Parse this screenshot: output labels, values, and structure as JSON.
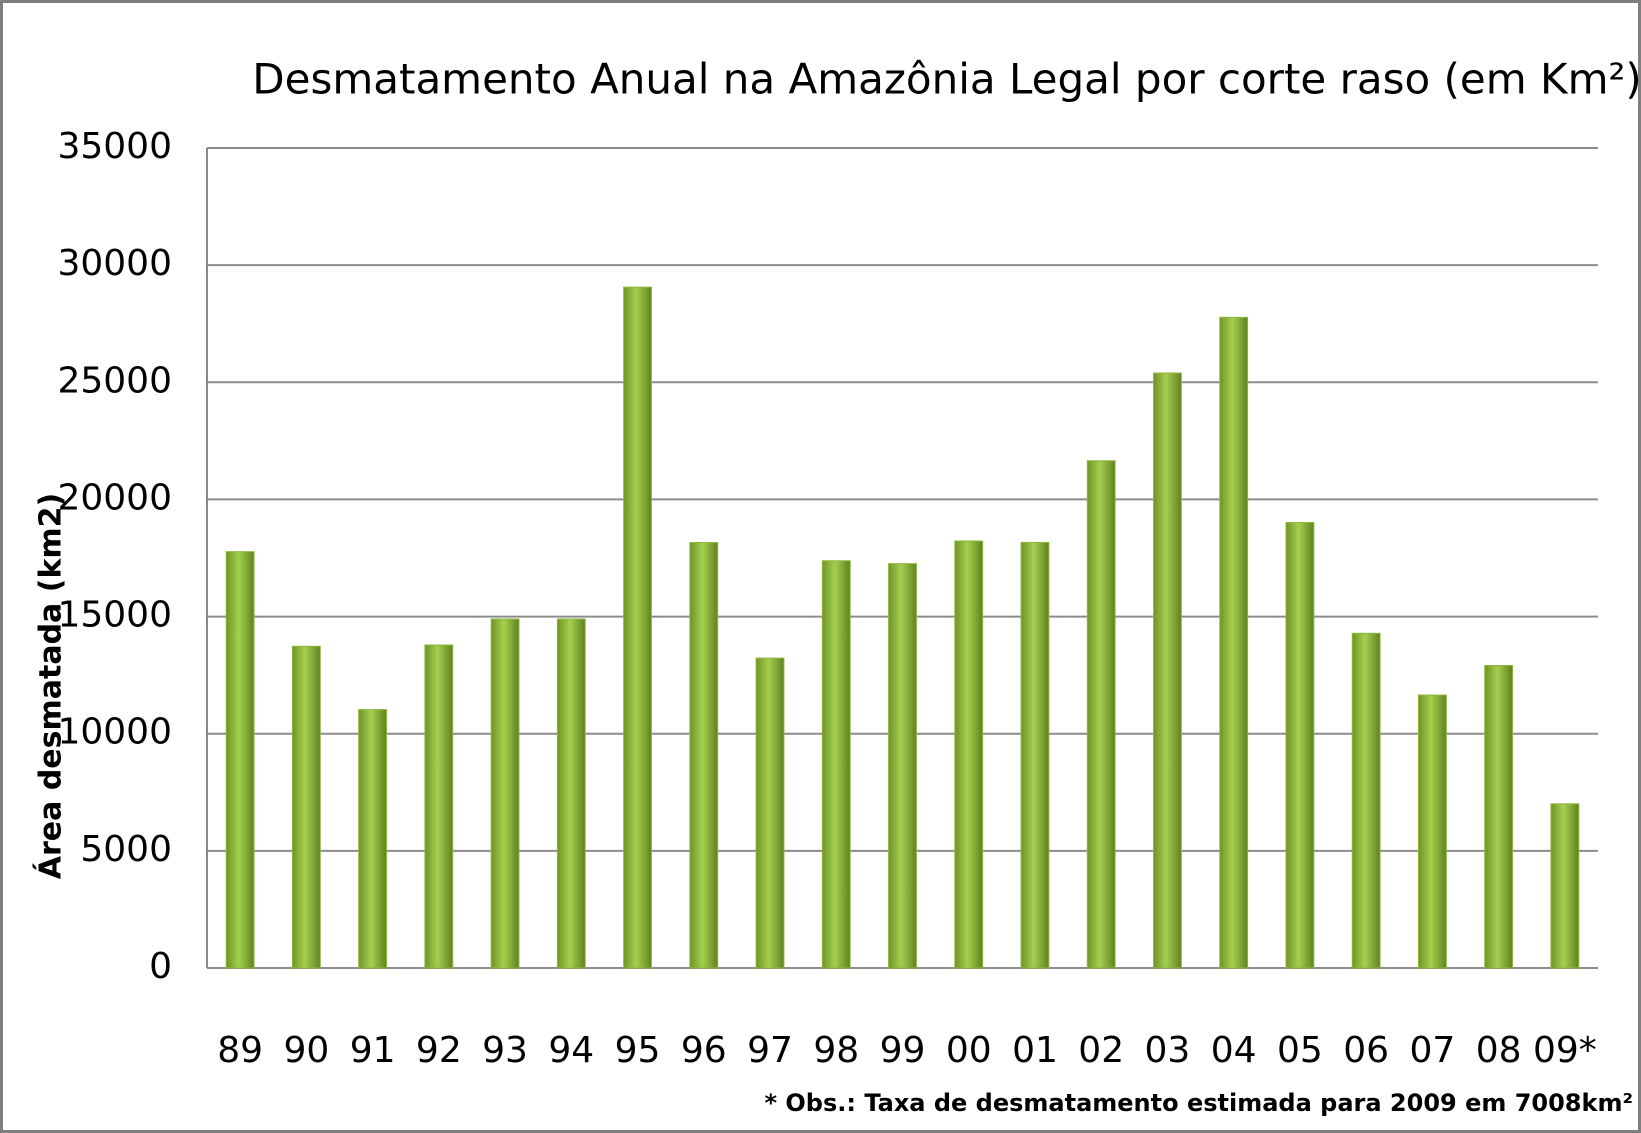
{
  "chart_data": {
    "type": "bar",
    "title": "Desmatamento Anual na Amazônia Legal por corte raso (em Km²)",
    "y_label": "Área desmatada (km2)",
    "note": "* Obs.: Taxa de desmatamento estimada para 2009 em 7008km²",
    "categories": [
      "89",
      "90",
      "91",
      "92",
      "93",
      "94",
      "95",
      "96",
      "97",
      "98",
      "99",
      "00",
      "01",
      "02",
      "03",
      "04",
      "05",
      "06",
      "07",
      "08",
      "09*"
    ],
    "values": [
      17770,
      13730,
      11030,
      13786,
      14896,
      14896,
      29059,
      18161,
      13227,
      17383,
      17259,
      18226,
      18165,
      21651,
      25396,
      27772,
      19014,
      14286,
      11651,
      12911,
      7008
    ],
    "color": "#8db63c",
    "ylim": [
      0,
      35000
    ],
    "yticks": [
      0,
      5000,
      10000,
      15000,
      20000,
      25000,
      30000,
      35000
    ],
    "grid": true
  }
}
